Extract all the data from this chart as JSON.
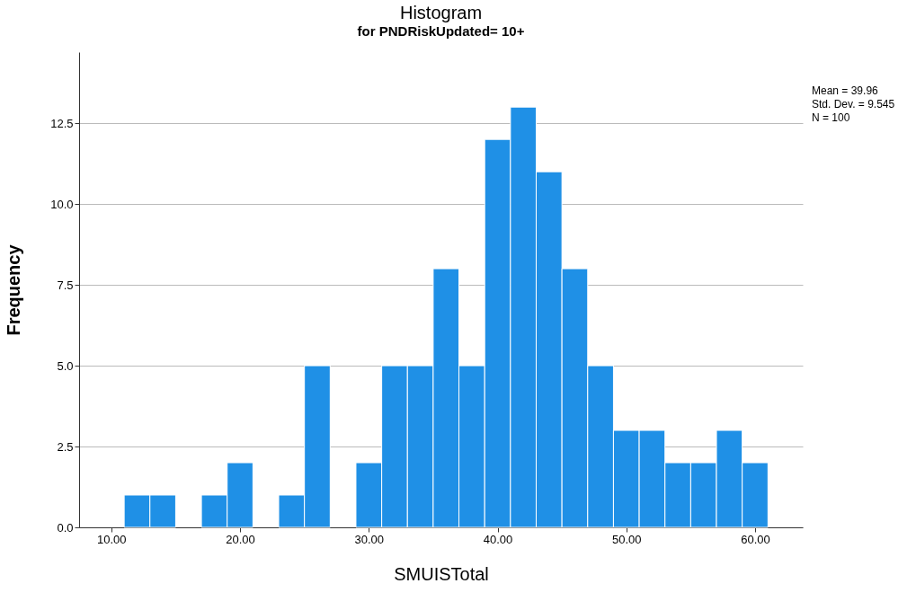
{
  "chart_data": {
    "type": "histogram",
    "title": "Histogram",
    "subtitle": "for PNDRiskUpdated= 10+",
    "xlabel": "SMUISTotal",
    "ylabel": "Frequency",
    "bins": [
      11,
      13,
      15,
      17,
      19,
      21,
      23,
      25,
      27,
      29,
      31,
      33,
      35,
      37,
      39,
      41,
      43,
      45,
      47,
      49,
      51,
      53,
      55,
      57,
      59,
      61
    ],
    "values": [
      1,
      1,
      0,
      1,
      2,
      0,
      1,
      5,
      0,
      2,
      5,
      5,
      8,
      5,
      12,
      13,
      11,
      8,
      5,
      3,
      3,
      2,
      2,
      3,
      2
    ],
    "color": "#1f90e6",
    "xlim": [
      7.5,
      63.7
    ],
    "xticks": [
      {
        "value": 10,
        "label": "10.00"
      },
      {
        "value": 20,
        "label": "20.00"
      },
      {
        "value": 30,
        "label": "30.00"
      },
      {
        "value": 40,
        "label": "40.00"
      },
      {
        "value": 50,
        "label": "50.00"
      },
      {
        "value": 60,
        "label": "60.00"
      }
    ],
    "ylim": [
      0,
      14.7
    ],
    "yticks": [
      {
        "value": 0,
        "label": "0.0"
      },
      2.5,
      {
        "value": 5,
        "label": "5.0"
      },
      7.5,
      {
        "value": 10,
        "label": "10.0"
      },
      12.5
    ],
    "grid": "y",
    "annotations": [
      "Mean = 39.96",
      "Std. Dev. = 9.545",
      "N = 100"
    ]
  }
}
